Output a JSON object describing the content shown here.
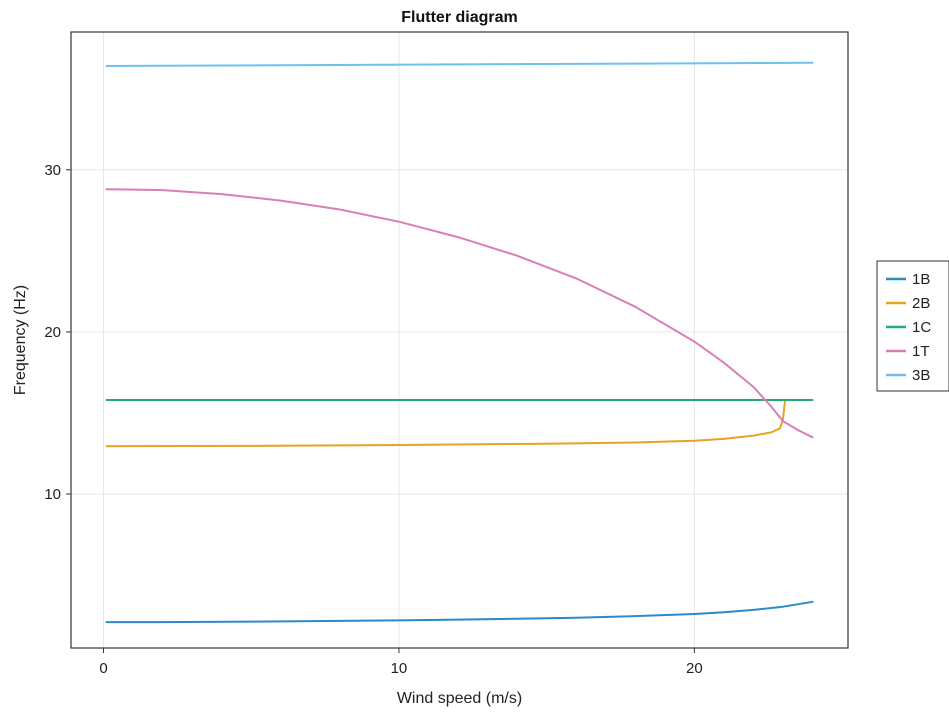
{
  "chart_data": {
    "type": "line",
    "title": "Flutter diagram",
    "xlabel": "Wind speed (m/s)",
    "ylabel": "Frequency (Hz)",
    "xlim": [
      -1.1,
      25.2
    ],
    "ylim": [
      0.5,
      38.5
    ],
    "xticks": [
      0,
      10,
      20
    ],
    "yticks": [
      10,
      20,
      30
    ],
    "grid": true,
    "legend_position": "right",
    "series": [
      {
        "name": "1B",
        "color": "#2a8bc8",
        "points": [
          [
            0.1,
            2.1
          ],
          [
            2,
            2.1
          ],
          [
            5,
            2.13
          ],
          [
            8,
            2.17
          ],
          [
            10,
            2.2
          ],
          [
            12,
            2.25
          ],
          [
            14,
            2.3
          ],
          [
            16,
            2.37
          ],
          [
            18,
            2.47
          ],
          [
            20,
            2.6
          ],
          [
            21,
            2.7
          ],
          [
            22,
            2.85
          ],
          [
            23,
            3.05
          ],
          [
            24,
            3.35
          ]
        ]
      },
      {
        "name": "2B",
        "color": "#e8a325",
        "points": [
          [
            0.1,
            12.95
          ],
          [
            5,
            12.97
          ],
          [
            10,
            13.02
          ],
          [
            15,
            13.1
          ],
          [
            18,
            13.18
          ],
          [
            20,
            13.28
          ],
          [
            21,
            13.4
          ],
          [
            22,
            13.6
          ],
          [
            22.6,
            13.8
          ],
          [
            22.9,
            14.05
          ],
          [
            23.0,
            14.6
          ],
          [
            23.05,
            15.5
          ],
          [
            23.08,
            15.8
          ]
        ]
      },
      {
        "name": "1C",
        "color": "#2aa872",
        "points": [
          [
            0.1,
            15.8
          ],
          [
            24,
            15.8
          ]
        ]
      },
      {
        "name": "1T",
        "color": "#d97fb8",
        "points": [
          [
            0.1,
            28.8
          ],
          [
            2,
            28.75
          ],
          [
            4,
            28.5
          ],
          [
            6,
            28.1
          ],
          [
            8,
            27.55
          ],
          [
            10,
            26.8
          ],
          [
            12,
            25.85
          ],
          [
            14,
            24.7
          ],
          [
            16,
            23.3
          ],
          [
            18,
            21.55
          ],
          [
            20,
            19.4
          ],
          [
            21,
            18.1
          ],
          [
            22,
            16.6
          ],
          [
            22.6,
            15.4
          ],
          [
            23.0,
            14.5
          ],
          [
            23.5,
            13.95
          ],
          [
            24,
            13.5
          ]
        ]
      },
      {
        "name": "3B",
        "color": "#6cc1f0",
        "points": [
          [
            0.1,
            36.4
          ],
          [
            6,
            36.45
          ],
          [
            12,
            36.5
          ],
          [
            18,
            36.55
          ],
          [
            24,
            36.6
          ]
        ]
      }
    ]
  }
}
